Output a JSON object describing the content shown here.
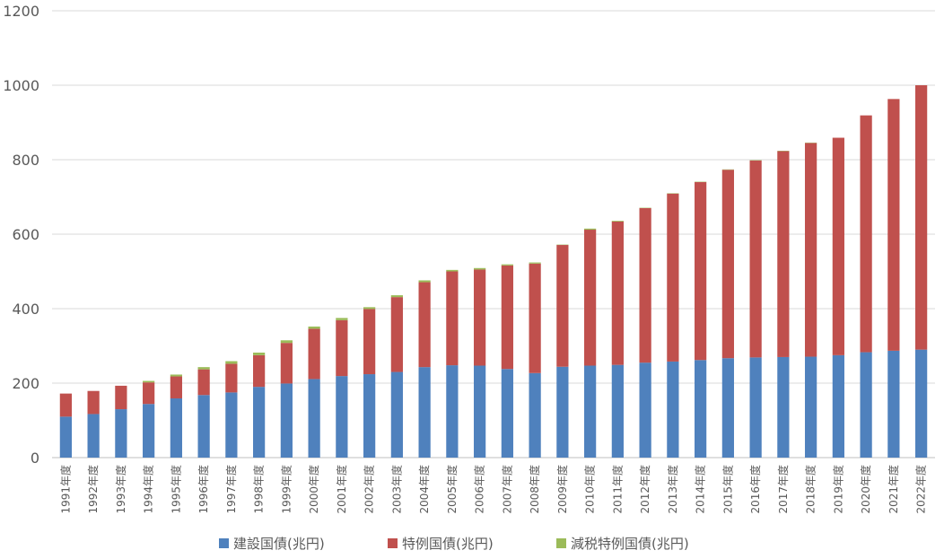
{
  "chart_data": {
    "type": "bar",
    "stacked": true,
    "title": "",
    "xlabel": "",
    "ylabel": "",
    "ylim": [
      0,
      1200
    ],
    "yticks": [
      "0",
      "200",
      "400",
      "600",
      "800",
      "1000",
      "1200"
    ],
    "grid": true,
    "legend_position": "bottom",
    "categories": [
      "1991年度",
      "1992年度",
      "1993年度",
      "1994年度",
      "1995年度",
      "1996年度",
      "1997年度",
      "1998年度",
      "1999年度",
      "2000年度",
      "2001年度",
      "2002年度",
      "2003年度",
      "2004年度",
      "2005年度",
      "2006年度",
      "2007年度",
      "2008年度",
      "2009年度",
      "2010年度",
      "2011年度",
      "2012年度",
      "2013年度",
      "2014年度",
      "2015年度",
      "2016年度",
      "2017年度",
      "2018年度",
      "2019年度",
      "2020年度",
      "2021年度",
      "2022年度"
    ],
    "series": [
      {
        "name": "建設国債(兆円)",
        "color": "#4F81BD",
        "values": [
          110,
          117,
          130,
          144,
          159,
          168,
          175,
          190,
          199,
          211,
          219,
          224,
          230,
          243,
          248,
          247,
          238,
          227,
          244,
          247,
          249,
          255,
          258,
          262,
          267,
          269,
          270,
          271,
          275,
          283,
          287,
          290
        ]
      },
      {
        "name": "特例国債(兆円)",
        "color": "#C0504D",
        "values": [
          62,
          62,
          63,
          58,
          59,
          69,
          77,
          85,
          109,
          135,
          150,
          175,
          201,
          228,
          252,
          258,
          278,
          294,
          327,
          365,
          385,
          415,
          451,
          478,
          506,
          529,
          553,
          574,
          584,
          636,
          676,
          710
        ]
      },
      {
        "name": "減税特例国債(兆円)",
        "color": "#9BBB59",
        "values": [
          0,
          0,
          0,
          4,
          5,
          6,
          7,
          7,
          7,
          6,
          6,
          5,
          5,
          5,
          4,
          4,
          3,
          3,
          1,
          3,
          2,
          1,
          1,
          1,
          1,
          1,
          1,
          1,
          0,
          0,
          0,
          0
        ]
      }
    ]
  }
}
